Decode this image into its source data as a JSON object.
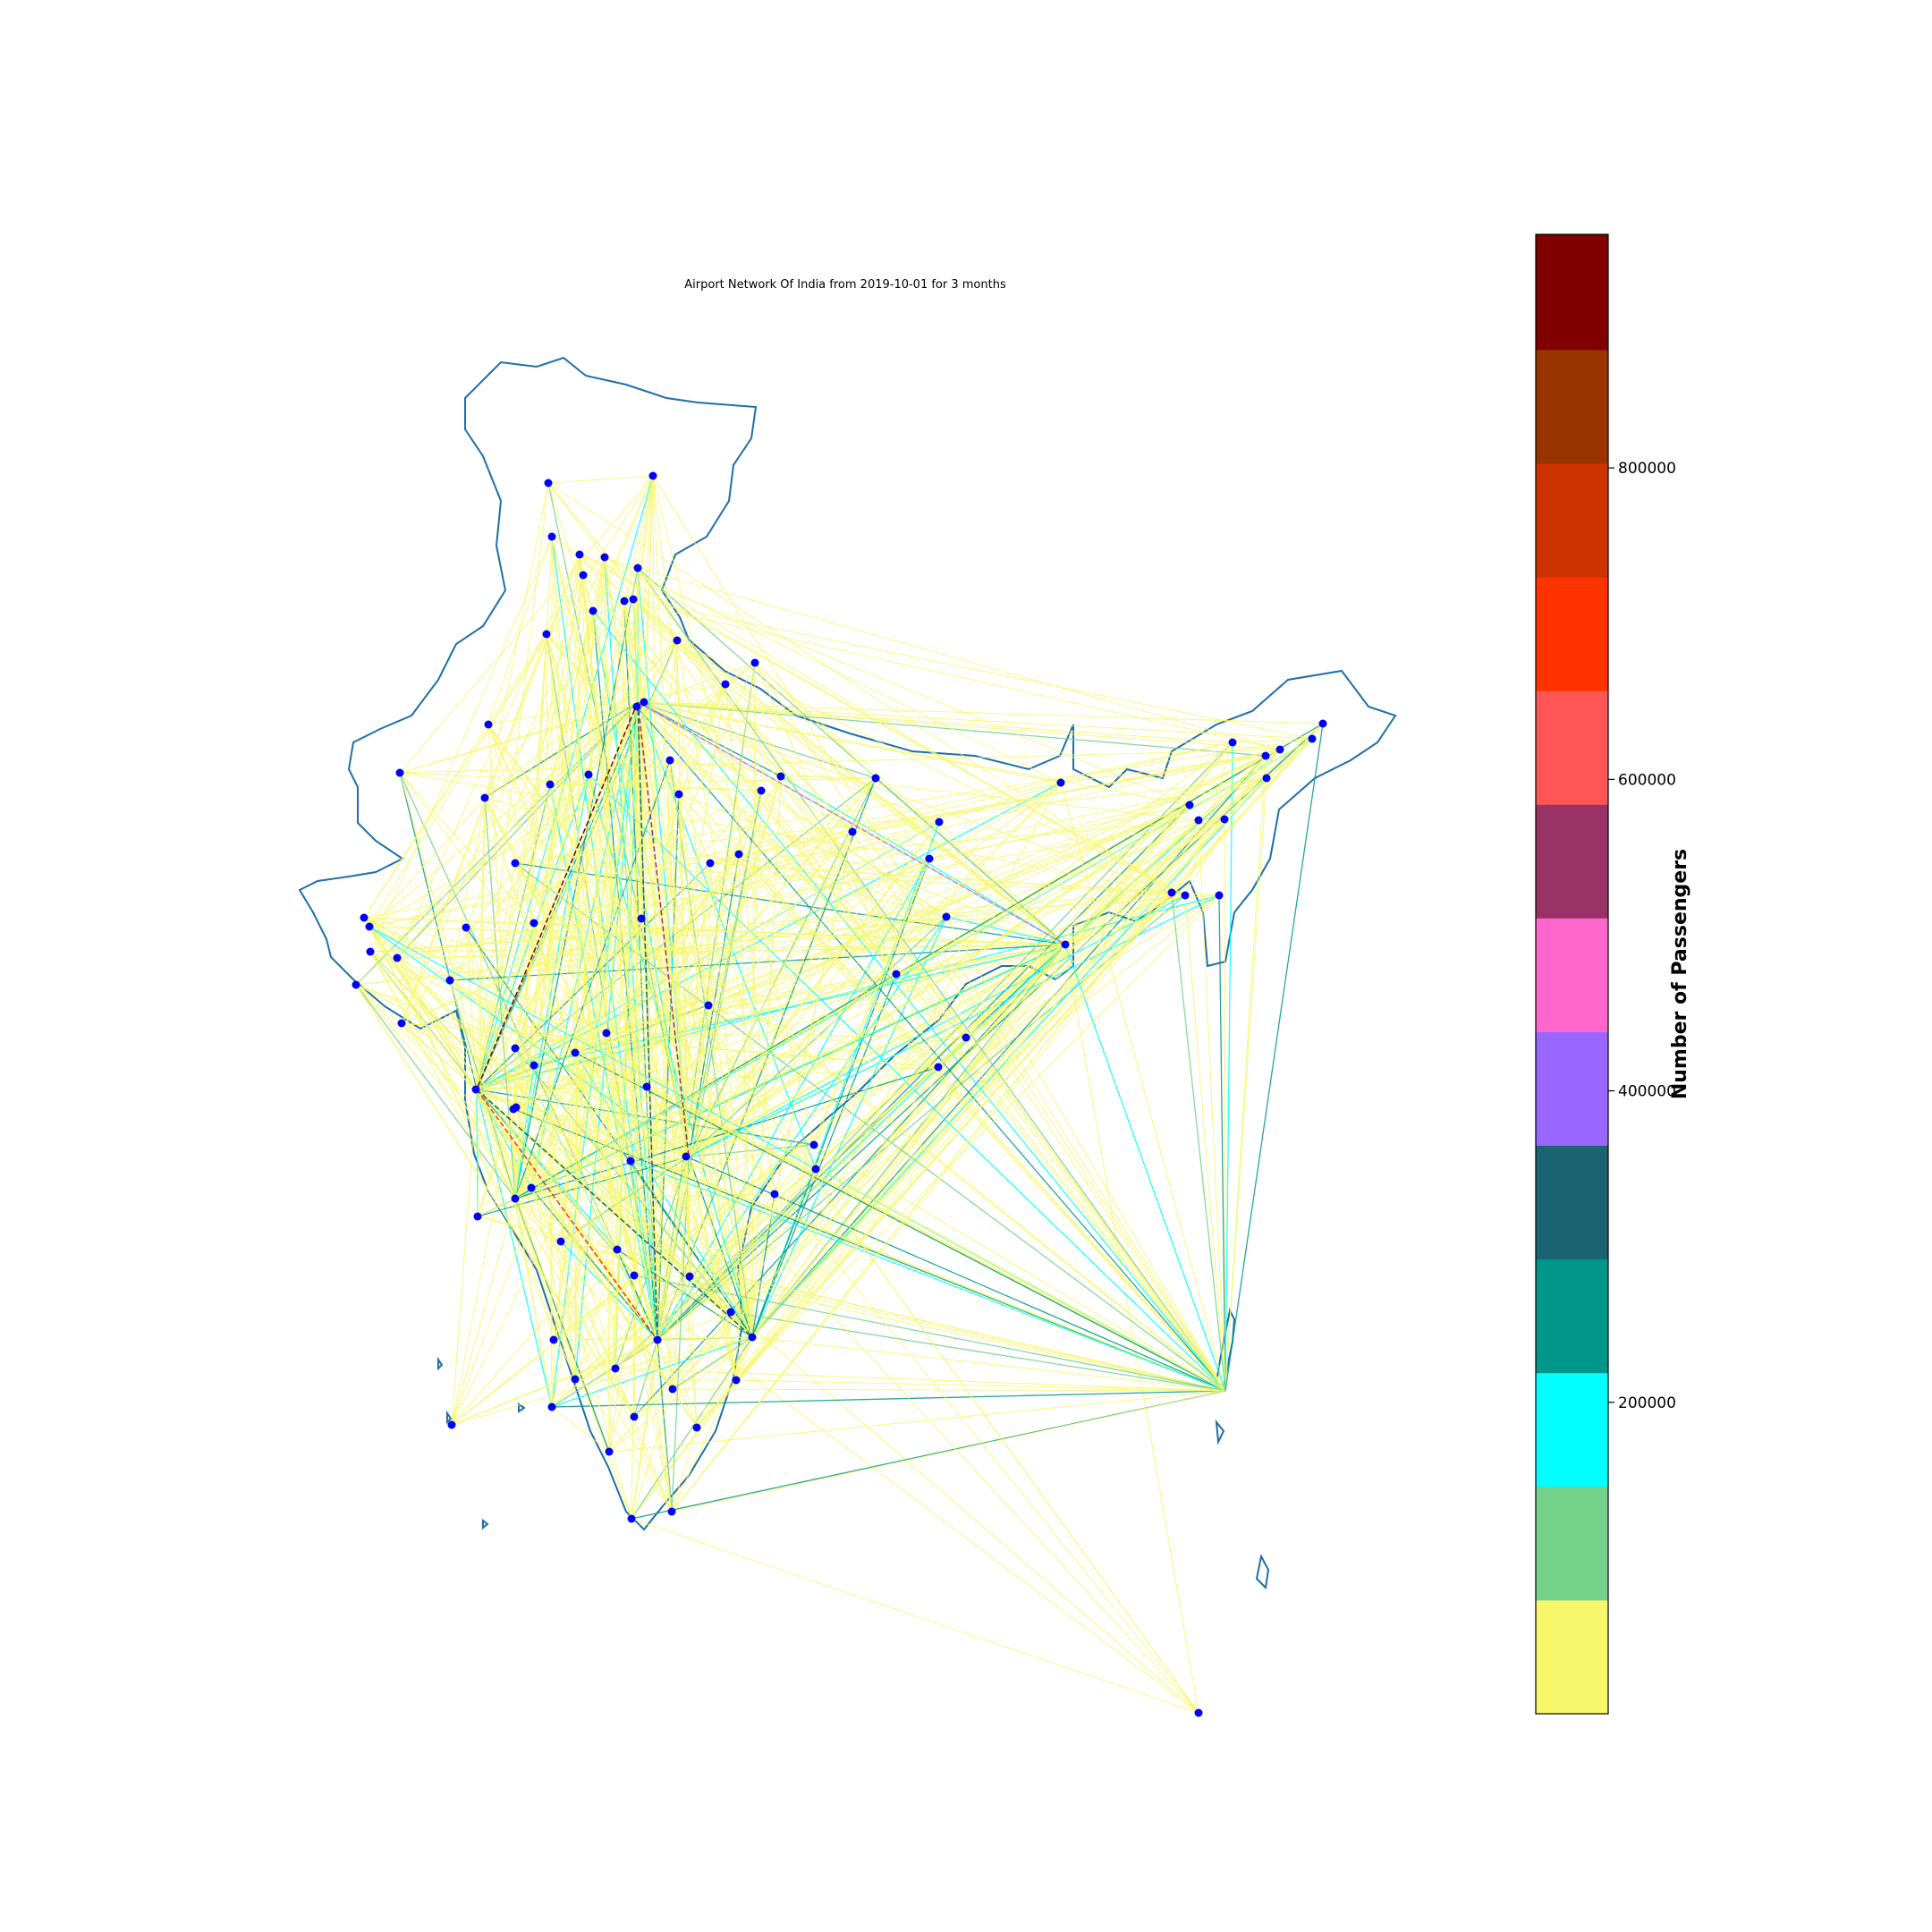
{
  "title": "Airport Network Of India from 2019-10-01 for 3 months",
  "colorbar": {
    "label": "Number of Passengers",
    "ticks": [
      {
        "value": 200000,
        "label": "200000"
      },
      {
        "value": 400000,
        "label": "400000"
      },
      {
        "value": 600000,
        "label": "600000"
      },
      {
        "value": 800000,
        "label": "800000"
      }
    ],
    "min": 0,
    "max": 950000,
    "bins": [
      {
        "from": 0,
        "to": 73000,
        "color": "#f7f76b"
      },
      {
        "from": 73000,
        "to": 146000,
        "color": "#74d18a"
      },
      {
        "from": 146000,
        "to": 219000,
        "color": "#00ffff"
      },
      {
        "from": 219000,
        "to": 292000,
        "color": "#009688"
      },
      {
        "from": 292000,
        "to": 365000,
        "color": "#1a6471"
      },
      {
        "from": 365000,
        "to": 438000,
        "color": "#9966ff"
      },
      {
        "from": 438000,
        "to": 511000,
        "color": "#ff66cc"
      },
      {
        "from": 511000,
        "to": 584000,
        "color": "#993366"
      },
      {
        "from": 584000,
        "to": 657000,
        "color": "#ff5555"
      },
      {
        "from": 657000,
        "to": 730000,
        "color": "#ff3300"
      },
      {
        "from": 730000,
        "to": 803000,
        "color": "#cc3300"
      },
      {
        "from": 803000,
        "to": 876000,
        "color": "#993300"
      },
      {
        "from": 876000,
        "to": 950000,
        "color": "#800000"
      }
    ]
  },
  "colors": {
    "border": "#1f6fa8",
    "airport": "#0000ff"
  }
}
